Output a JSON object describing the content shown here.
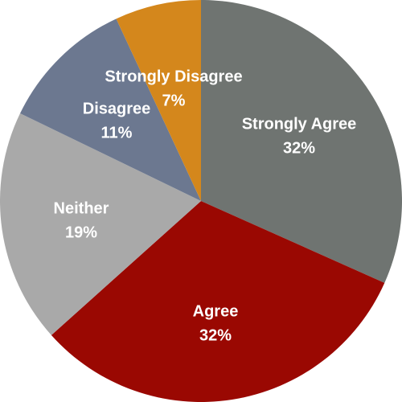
{
  "chart_data": {
    "type": "pie",
    "title": "",
    "start_angle_deg": 0,
    "direction": "clockwise",
    "slices": [
      {
        "label": "Strongly Agree",
        "value": 32,
        "value_label": "32%",
        "color": "#6f7471"
      },
      {
        "label": "Agree",
        "value": 32,
        "value_label": "32%",
        "color": "#9a0802"
      },
      {
        "label": "Neither",
        "value": 19,
        "value_label": "19%",
        "color": "#a9a9a9"
      },
      {
        "label": "Disagree",
        "value": 11,
        "value_label": "11%",
        "color": "#6c7890"
      },
      {
        "label": "Strongly Disagree",
        "value": 7,
        "value_label": "7%",
        "color": "#d4871c"
      }
    ]
  }
}
